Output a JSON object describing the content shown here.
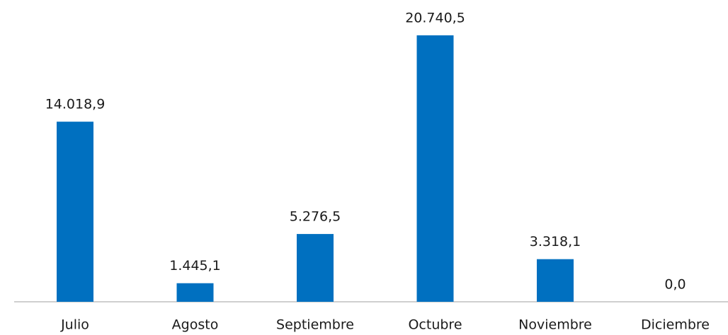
{
  "chart_data": {
    "type": "bar",
    "categories": [
      "Julio",
      "Agosto",
      "Septiembre",
      "Octubre",
      "Noviembre",
      "Diciembre"
    ],
    "values": [
      14018.9,
      1445.1,
      5276.5,
      20740.5,
      3318.1,
      0.0
    ],
    "value_labels": [
      "14.018,9",
      "1.445,1",
      "5.276,5",
      "20.740,5",
      "3.318,1",
      "0,0"
    ],
    "color": "#0070c0"
  }
}
